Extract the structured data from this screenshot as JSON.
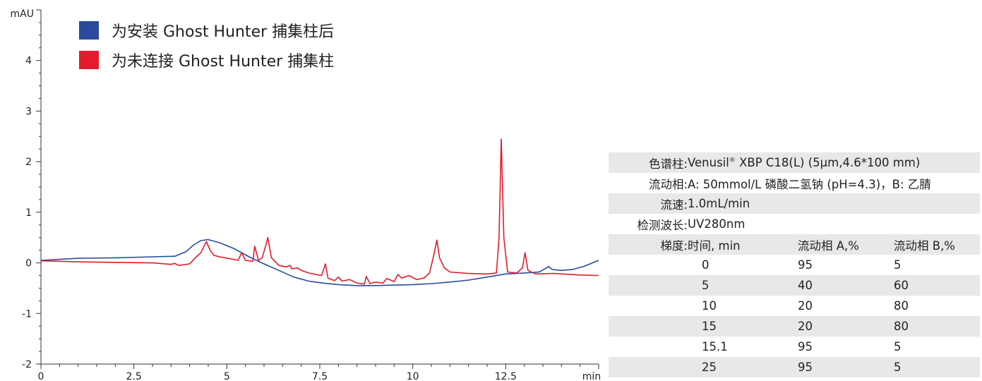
{
  "colors": {
    "blue": "#2a4b9b",
    "red": "#e31b2a",
    "axis": "#333333",
    "rowShade": "#e8e8e8"
  },
  "legend": [
    {
      "label": "为安装 Ghost Hunter 捕集柱后",
      "color": "#2a4b9b"
    },
    {
      "label": "为未连接 Ghost Hunter 捕集柱",
      "color": "#e31b2a"
    }
  ],
  "conditions": {
    "column_label": "色谱柱:",
    "column_value_pre": "Venusil",
    "column_value_sup": "®",
    "column_value_post": " XBP C18(L) (5µm,4.6*100 mm)",
    "mobile_label": "流动相:",
    "mobile_value": "A: 50mmol/L 磷酸二氢钠 (pH=4.3)，B: 乙腈",
    "flow_label": "流速:",
    "flow_value": "1.0mL/min",
    "detect_label": "检测波长:",
    "detect_value": "UV280nm",
    "gradient_label": "梯度:",
    "gradient_headers": [
      "时间, min",
      "流动相 A,%",
      "流动相 B,%"
    ],
    "gradient_rows": [
      [
        "0",
        "95",
        "5"
      ],
      [
        "5",
        "40",
        "60"
      ],
      [
        "10",
        "20",
        "80"
      ],
      [
        "15",
        "20",
        "80"
      ],
      [
        "15.1",
        "95",
        "5"
      ],
      [
        "25",
        "95",
        "5"
      ]
    ]
  },
  "chart_data": {
    "type": "line",
    "title": "",
    "ylabel": "mAU",
    "xlabel": "min",
    "xlim": [
      0,
      15
    ],
    "ylim": [
      -2,
      5
    ],
    "x_ticks": [
      0,
      2.5,
      5,
      7.5,
      10,
      12.5
    ],
    "x_tick_labels": [
      "0",
      "2.5",
      "5",
      "7.5",
      "10",
      "12.5"
    ],
    "y_ticks": [
      -2,
      -1,
      0,
      1,
      2,
      3,
      4
    ],
    "y_tick_labels": [
      "-2",
      "-1",
      "0",
      "1",
      "2",
      "3",
      "4"
    ],
    "grid": false,
    "series": [
      {
        "name": "为安装 Ghost Hunter 捕集柱后",
        "color": "#2a4b9b",
        "points": [
          [
            0,
            0.05
          ],
          [
            0.5,
            0.07
          ],
          [
            1,
            0.09
          ],
          [
            2,
            0.1
          ],
          [
            3,
            0.12
          ],
          [
            3.6,
            0.13
          ],
          [
            3.9,
            0.22
          ],
          [
            4.1,
            0.35
          ],
          [
            4.3,
            0.44
          ],
          [
            4.5,
            0.46
          ],
          [
            4.8,
            0.4
          ],
          [
            5.2,
            0.28
          ],
          [
            5.6,
            0.12
          ],
          [
            6,
            -0.02
          ],
          [
            6.4,
            -0.15
          ],
          [
            6.8,
            -0.28
          ],
          [
            7.2,
            -0.36
          ],
          [
            7.6,
            -0.4
          ],
          [
            8,
            -0.43
          ],
          [
            8.5,
            -0.45
          ],
          [
            9,
            -0.45
          ],
          [
            9.5,
            -0.44
          ],
          [
            10,
            -0.43
          ],
          [
            10.5,
            -0.41
          ],
          [
            11,
            -0.38
          ],
          [
            11.5,
            -0.34
          ],
          [
            12,
            -0.28
          ],
          [
            12.5,
            -0.22
          ],
          [
            13,
            -0.2
          ],
          [
            13.4,
            -0.18
          ],
          [
            13.6,
            -0.1
          ],
          [
            13.65,
            -0.07
          ],
          [
            13.75,
            -0.13
          ],
          [
            14,
            -0.15
          ],
          [
            14.3,
            -0.13
          ],
          [
            14.6,
            -0.07
          ],
          [
            15,
            0.05
          ]
        ]
      },
      {
        "name": "为未连接 Ghost Hunter 捕集柱",
        "color": "#e31b2a",
        "points": [
          [
            0,
            0.04
          ],
          [
            1,
            0.02
          ],
          [
            2,
            0.01
          ],
          [
            3,
            0
          ],
          [
            3.5,
            -0.03
          ],
          [
            3.6,
            -0.01
          ],
          [
            3.7,
            -0.05
          ],
          [
            4,
            -0.02
          ],
          [
            4.15,
            0.1
          ],
          [
            4.3,
            0.2
          ],
          [
            4.4,
            0.35
          ],
          [
            4.45,
            0.42
          ],
          [
            4.55,
            0.25
          ],
          [
            4.65,
            0.15
          ],
          [
            4.8,
            0.12
          ],
          [
            5.1,
            0.08
          ],
          [
            5.3,
            0.05
          ],
          [
            5.4,
            0.2
          ],
          [
            5.5,
            0.05
          ],
          [
            5.7,
            0.03
          ],
          [
            5.75,
            0.33
          ],
          [
            5.85,
            0.05
          ],
          [
            5.95,
            0.1
          ],
          [
            6.05,
            0.35
          ],
          [
            6.1,
            0.5
          ],
          [
            6.2,
            0.1
          ],
          [
            6.4,
            -0.05
          ],
          [
            6.6,
            -0.08
          ],
          [
            6.7,
            -0.05
          ],
          [
            6.75,
            -0.12
          ],
          [
            6.9,
            -0.1
          ],
          [
            7,
            -0.15
          ],
          [
            7.2,
            -0.2
          ],
          [
            7.4,
            -0.23
          ],
          [
            7.55,
            -0.25
          ],
          [
            7.65,
            -0.02
          ],
          [
            7.72,
            -0.3
          ],
          [
            7.9,
            -0.35
          ],
          [
            8,
            -0.28
          ],
          [
            8.1,
            -0.36
          ],
          [
            8.3,
            -0.33
          ],
          [
            8.5,
            -0.4
          ],
          [
            8.7,
            -0.42
          ],
          [
            8.75,
            -0.27
          ],
          [
            8.85,
            -0.41
          ],
          [
            9,
            -0.38
          ],
          [
            9.2,
            -0.4
          ],
          [
            9.3,
            -0.31
          ],
          [
            9.5,
            -0.37
          ],
          [
            9.6,
            -0.23
          ],
          [
            9.7,
            -0.3
          ],
          [
            9.9,
            -0.25
          ],
          [
            10.1,
            -0.33
          ],
          [
            10.3,
            -0.3
          ],
          [
            10.45,
            -0.2
          ],
          [
            10.55,
            0.1
          ],
          [
            10.65,
            0.45
          ],
          [
            10.72,
            0.1
          ],
          [
            10.85,
            -0.1
          ],
          [
            11,
            -0.18
          ],
          [
            11.5,
            -0.21
          ],
          [
            12,
            -0.22
          ],
          [
            12.25,
            -0.2
          ],
          [
            12.32,
            0.5
          ],
          [
            12.38,
            2.45
          ],
          [
            12.45,
            0.5
          ],
          [
            12.55,
            -0.18
          ],
          [
            12.8,
            -0.2
          ],
          [
            12.95,
            -0.1
          ],
          [
            13.02,
            0.2
          ],
          [
            13.1,
            -0.15
          ],
          [
            13.3,
            -0.22
          ],
          [
            13.8,
            -0.21
          ],
          [
            14.5,
            -0.24
          ],
          [
            15,
            -0.25
          ]
        ]
      }
    ]
  }
}
